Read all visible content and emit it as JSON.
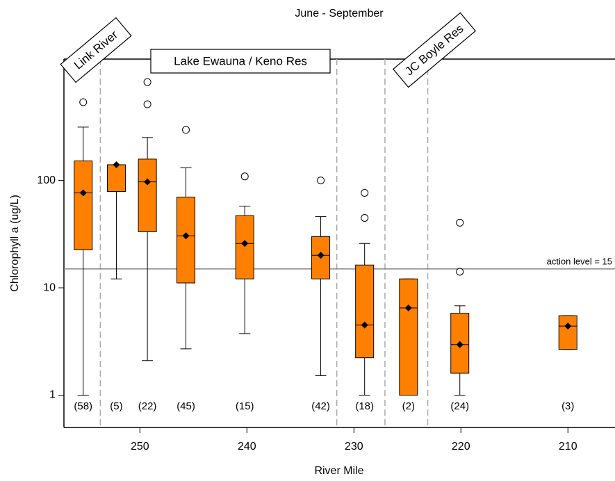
{
  "chart_data": {
    "type": "box",
    "title": "June - September",
    "x_label": "River Mile",
    "y_label": "Chlorophyll a (ug/L)",
    "log_y": true,
    "color": "#ff8000",
    "xlim": [
      257.1,
      205.6
    ],
    "xticks": [
      250,
      240,
      230,
      220,
      210
    ],
    "ylim": [
      0.5,
      1350
    ],
    "yticks": [
      1,
      10,
      100
    ],
    "reference_line": {
      "value": 15,
      "label": "action level = 15"
    },
    "region_boundaries": [
      253.7,
      231.6,
      227.1,
      223.1
    ],
    "regions": [
      "Link River",
      "Lake Ewauna / Keno Res",
      "JC Boyle Res"
    ],
    "boxes": [
      {
        "x": 255.3,
        "label": "(58)",
        "whisker_low": 1,
        "q1": 22.6,
        "median": 76.6,
        "q3": 152,
        "whisker_high": 314,
        "outliers": [
          536
        ]
      },
      {
        "x": 252.2,
        "label": "(5)",
        "whisker_low": 12.1,
        "q1": 78.8,
        "median": 140,
        "q3": 140,
        "whisker_high": 140,
        "outliers": []
      },
      {
        "x": 249.3,
        "label": "(22)",
        "whisker_low": 2.1,
        "q1": 33.3,
        "median": 97,
        "q3": 158,
        "whisker_high": 251,
        "outliers": [
          824,
          512
        ]
      },
      {
        "x": 245.7,
        "label": "(45)",
        "whisker_low": 2.7,
        "q1": 11.1,
        "median": 30.5,
        "q3": 70,
        "whisker_high": 131,
        "outliers": [
          296
        ]
      },
      {
        "x": 240.2,
        "label": "(15)",
        "whisker_low": 3.75,
        "q1": 12.1,
        "median": 25.9,
        "q3": 46.9,
        "whisker_high": 57.7,
        "outliers": [
          109
        ]
      },
      {
        "x": 233.1,
        "label": "(42)",
        "whisker_low": 1.52,
        "q1": 12.1,
        "median": 20.1,
        "q3": 30,
        "whisker_high": 46,
        "outliers": [
          100
        ]
      },
      {
        "x": 229.0,
        "label": "(18)",
        "whisker_low": 1,
        "q1": 2.23,
        "median": 4.5,
        "q3": 16.3,
        "whisker_high": 25.9,
        "outliers": [
          76.6,
          44.8
        ]
      },
      {
        "x": 224.9,
        "label": "(2)",
        "whisker_low": 1,
        "q1": 1,
        "median": 6.5,
        "q3": 12.1,
        "whisker_high": 12.1,
        "outliers": []
      },
      {
        "x": 220.1,
        "label": "(24)",
        "whisker_low": 1,
        "q1": 1.6,
        "median": 2.96,
        "q3": 5.8,
        "whisker_high": 6.8,
        "outliers": [
          40.4,
          14.1
        ]
      },
      {
        "x": 210,
        "label": "(3)",
        "whisker_low": 2.67,
        "q1": 2.67,
        "median": 4.4,
        "q3": 5.5,
        "whisker_high": 5.5,
        "outliers": []
      }
    ]
  }
}
